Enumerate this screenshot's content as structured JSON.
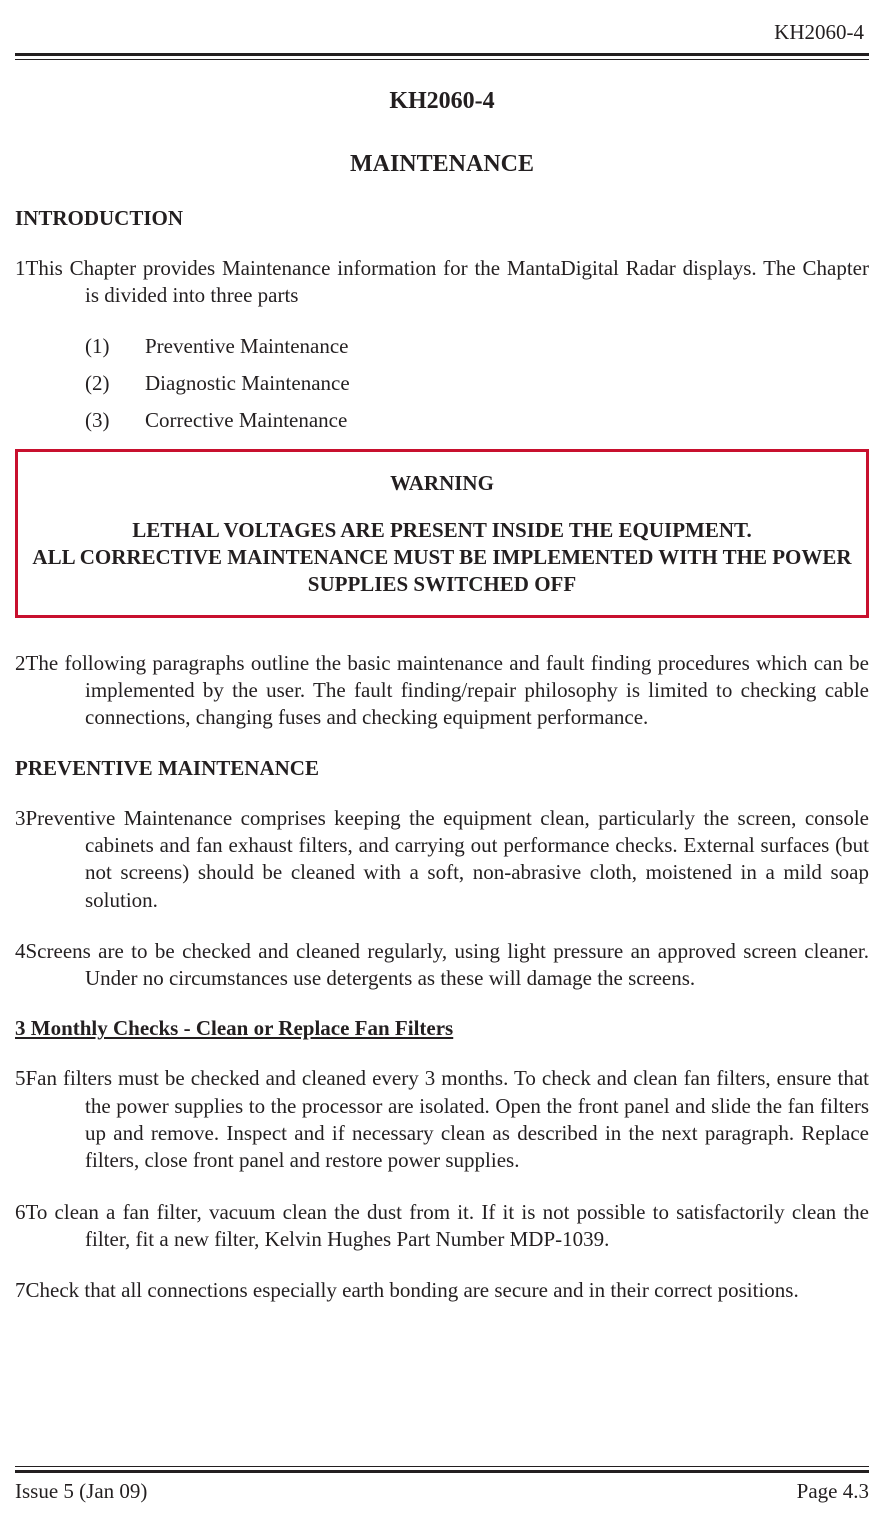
{
  "doc_id": "KH2060-4",
  "title": "KH2060-4",
  "subtitle": "MAINTENANCE",
  "intro_head": "INTRODUCTION",
  "para1": "This Chapter provides Maintenance information for the MantaDigital Radar displays. The Chapter is divided into three parts",
  "list": {
    "i1_num": "(1)",
    "i1": "Preventive Maintenance",
    "i2_num": "(2)",
    "i2": "Diagnostic Maintenance",
    "i3_num": "(3)",
    "i3": "Corrective Maintenance"
  },
  "warning": {
    "title": "WARNING",
    "line1": "LETHAL VOLTAGES ARE PRESENT INSIDE THE EQUIPMENT.",
    "line2": "ALL CORRECTIVE MAINTENANCE MUST BE IMPLEMENTED WITH THE POWER SUPPLIES SWITCHED OFF",
    "border_color": "#c8102e"
  },
  "para2": "The following paragraphs  outline the basic maintenance and fault finding procedures which can be implemented by the user. The fault finding/repair philosophy is limited to checking cable connections, changing fuses and checking equipment performance.",
  "prev_head": "PREVENTIVE MAINTENANCE",
  "para3": "Preventive Maintenance comprises keeping the equipment clean, particularly the screen, console cabinets and fan exhaust filters, and carrying out performance checks. External surfaces (but not screens) should be cleaned with a soft, non-abrasive cloth, moistened in a mild soap solution.",
  "para4": "Screens are to be checked and cleaned regularly, using light pressure an approved screen cleaner. Under no circumstances use detergents as these will damage the screens.",
  "three_month_head": "3 Monthly Checks - Clean or Replace Fan Filters",
  "para5": "Fan filters must be checked and cleaned every 3 months. To check and clean fan filters, ensure that the power supplies to the processor are isolated. Open the front panel and slide the fan filters up and remove. Inspect and if necessary clean as described in the next paragraph. Replace filters, close front panel and restore power supplies.",
  "para6": "To clean a fan filter, vacuum clean the dust from it. If it is not possible to satisfactorily clean the filter, fit a new filter, Kelvin Hughes Part Number MDP-1039.",
  "para7": "Check that all connections especially earth bonding are secure and in their correct positions.",
  "nums": {
    "n1": "1",
    "n2": "2",
    "n3": "3",
    "n4": "4",
    "n5": "5",
    "n6": "6",
    "n7": "7"
  },
  "footer": {
    "left": "Issue 5 (Jan 09)",
    "right": "Page 4.3"
  },
  "colors": {
    "text": "#231f20",
    "bg": "#ffffff",
    "warn_border": "#c8102e"
  },
  "fonts": {
    "body_family": "Times New Roman",
    "body_size_pt": 16,
    "heading_size_pt": 18
  }
}
